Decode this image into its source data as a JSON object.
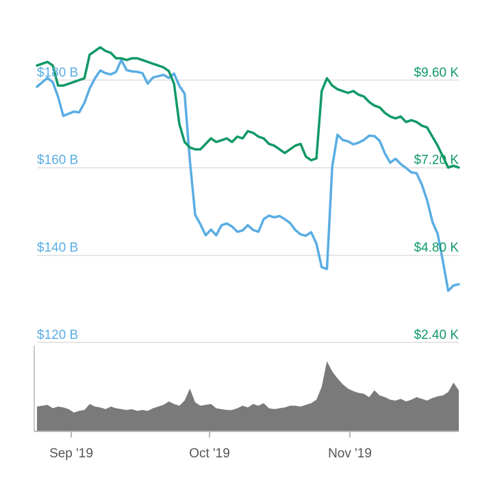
{
  "colors": {
    "market_cap": "#5aade3",
    "price": "#119966",
    "volume": "#7a7a7a",
    "grid": "#dddddd",
    "axis": "#b9b9b9",
    "x_tick_text": "#555555"
  },
  "chart_data": [
    {
      "type": "line",
      "title": "",
      "xlabel": "",
      "ylabel": "",
      "grid": true,
      "legend": "none",
      "x_ticks": [
        "Sep '19",
        "Oct '19",
        "Nov '19"
      ],
      "x": [
        "2019-08-23",
        "2019-11-25"
      ],
      "left_axis": {
        "ticks": [
          {
            "value": 120,
            "label": "$120 B"
          },
          {
            "value": 140,
            "label": "$140 B"
          },
          {
            "value": 160,
            "label": "$160 B"
          },
          {
            "value": 180,
            "label": "$180 B"
          }
        ],
        "ylim": [
          120,
          180
        ]
      },
      "right_axis": {
        "ticks": [
          {
            "value": 2.4,
            "label": "$2.40 K"
          },
          {
            "value": 4.8,
            "label": "$4.80 K"
          },
          {
            "value": 7.2,
            "label": "$7.20 K"
          },
          {
            "value": 9.6,
            "label": "$9.60 K"
          }
        ],
        "ylim": [
          2.4,
          9.6
        ]
      },
      "series": [
        {
          "axis": "left",
          "values": [
            [
              0,
              178.5
            ],
            [
              2,
              180.5
            ],
            [
              3,
              179.5
            ],
            [
              4,
              176.2
            ],
            [
              5,
              171.8
            ],
            [
              7,
              172.8
            ],
            [
              8,
              172.6
            ],
            [
              9,
              174.8
            ],
            [
              10,
              178.1
            ],
            [
              11,
              180.4
            ],
            [
              12,
              182.2
            ],
            [
              13,
              181.6
            ],
            [
              14,
              181.3
            ],
            [
              15,
              181.9
            ],
            [
              16,
              184.6
            ],
            [
              17,
              182.3
            ],
            [
              18,
              182.0
            ],
            [
              19,
              181.9
            ],
            [
              20,
              181.6
            ],
            [
              21,
              179.2
            ],
            [
              22,
              180.6
            ],
            [
              23,
              180.9
            ],
            [
              24,
              181.2
            ],
            [
              25,
              180.5
            ],
            [
              26,
              181.5
            ],
            [
              27,
              178.7
            ],
            [
              28,
              176.9
            ],
            [
              29,
              161.6
            ],
            [
              30,
              149.2
            ],
            [
              31,
              147.0
            ],
            [
              32,
              144.5
            ],
            [
              33,
              145.8
            ],
            [
              34,
              144.5
            ],
            [
              35,
              146.8
            ],
            [
              36,
              147.2
            ],
            [
              37,
              146.5
            ],
            [
              38,
              145.3
            ],
            [
              39,
              145.6
            ],
            [
              40,
              146.8
            ],
            [
              41,
              145.7
            ],
            [
              42,
              145.3
            ],
            [
              43,
              148.2
            ],
            [
              44,
              149.0
            ],
            [
              45,
              148.6
            ],
            [
              46,
              148.9
            ],
            [
              47,
              148.2
            ],
            [
              48,
              147.3
            ],
            [
              49,
              145.7
            ],
            [
              50,
              144.7
            ],
            [
              51,
              144.4
            ],
            [
              52,
              145.2
            ],
            [
              53,
              142.6
            ],
            [
              54,
              137.2
            ],
            [
              55,
              136.8
            ],
            [
              56,
              160.2
            ],
            [
              57,
              167.5
            ],
            [
              58,
              166.3
            ],
            [
              59,
              166.0
            ],
            [
              60,
              165.3
            ],
            [
              61,
              165.7
            ],
            [
              62,
              166.3
            ],
            [
              63,
              167.3
            ],
            [
              64,
              167.2
            ],
            [
              65,
              166.1
            ],
            [
              66,
              163.2
            ],
            [
              67,
              161.1
            ],
            [
              68,
              162.0
            ],
            [
              69,
              160.8
            ],
            [
              70,
              159.9
            ],
            [
              71,
              158.9
            ],
            [
              72,
              158.7
            ],
            [
              73,
              156.1
            ],
            [
              74,
              152.5
            ],
            [
              75,
              147.6
            ],
            [
              76,
              144.8
            ],
            [
              77,
              138.5
            ],
            [
              78,
              131.8
            ],
            [
              79,
              133.0
            ],
            [
              80,
              133.3
            ]
          ]
        },
        {
          "axis": "right",
          "values": [
            [
              0,
              10.0
            ],
            [
              2,
              10.1
            ],
            [
              3,
              10.0
            ],
            [
              4,
              9.45
            ],
            [
              5,
              9.45
            ],
            [
              7,
              9.55
            ],
            [
              8,
              9.6
            ],
            [
              9,
              9.65
            ],
            [
              10,
              10.3
            ],
            [
              11,
              10.4
            ],
            [
              12,
              10.5
            ],
            [
              13,
              10.4
            ],
            [
              14,
              10.35
            ],
            [
              15,
              10.2
            ],
            [
              16,
              10.2
            ],
            [
              17,
              10.15
            ],
            [
              18,
              10.2
            ],
            [
              19,
              10.2
            ],
            [
              20,
              10.15
            ],
            [
              21,
              10.1
            ],
            [
              22,
              10.05
            ],
            [
              23,
              10.0
            ],
            [
              24,
              9.95
            ],
            [
              25,
              9.85
            ],
            [
              26,
              9.5
            ],
            [
              27,
              8.4
            ],
            [
              28,
              7.9
            ],
            [
              29,
              7.75
            ],
            [
              30,
              7.7
            ],
            [
              31,
              7.7
            ],
            [
              32,
              7.85
            ],
            [
              33,
              8.0
            ],
            [
              34,
              7.9
            ],
            [
              35,
              7.95
            ],
            [
              36,
              8.0
            ],
            [
              37,
              7.9
            ],
            [
              38,
              8.05
            ],
            [
              39,
              8.0
            ],
            [
              40,
              8.2
            ],
            [
              41,
              8.15
            ],
            [
              42,
              8.05
            ],
            [
              43,
              8.0
            ],
            [
              44,
              7.85
            ],
            [
              45,
              7.8
            ],
            [
              46,
              7.7
            ],
            [
              47,
              7.6
            ],
            [
              48,
              7.7
            ],
            [
              49,
              7.8
            ],
            [
              50,
              7.85
            ],
            [
              51,
              7.5
            ],
            [
              52,
              7.4
            ],
            [
              53,
              7.45
            ],
            [
              54,
              9.3
            ],
            [
              55,
              9.65
            ],
            [
              56,
              9.45
            ],
            [
              57,
              9.35
            ],
            [
              58,
              9.3
            ],
            [
              59,
              9.25
            ],
            [
              60,
              9.3
            ],
            [
              61,
              9.2
            ],
            [
              62,
              9.15
            ],
            [
              63,
              9.0
            ],
            [
              64,
              8.9
            ],
            [
              65,
              8.85
            ],
            [
              66,
              8.7
            ],
            [
              67,
              8.6
            ],
            [
              68,
              8.55
            ],
            [
              69,
              8.6
            ],
            [
              70,
              8.45
            ],
            [
              71,
              8.5
            ],
            [
              72,
              8.45
            ],
            [
              73,
              8.35
            ],
            [
              74,
              8.3
            ],
            [
              75,
              8.05
            ],
            [
              76,
              7.8
            ],
            [
              77,
              7.5
            ],
            [
              78,
              7.2
            ],
            [
              79,
              7.25
            ],
            [
              80,
              7.2
            ]
          ]
        }
      ]
    },
    {
      "type": "area",
      "title": "",
      "xlabel": "",
      "ylabel": "",
      "grid": false,
      "legend": "none",
      "ylim": [
        0,
        1
      ],
      "series": [
        {
          "values": [
            [
              0,
              0.29
            ],
            [
              2,
              0.31
            ],
            [
              3,
              0.27
            ],
            [
              4,
              0.29
            ],
            [
              5,
              0.28
            ],
            [
              6,
              0.26
            ],
            [
              7,
              0.22
            ],
            [
              8,
              0.24
            ],
            [
              9,
              0.25
            ],
            [
              10,
              0.32
            ],
            [
              11,
              0.29
            ],
            [
              12,
              0.28
            ],
            [
              13,
              0.26
            ],
            [
              14,
              0.29
            ],
            [
              15,
              0.27
            ],
            [
              16,
              0.26
            ],
            [
              17,
              0.25
            ],
            [
              18,
              0.26
            ],
            [
              19,
              0.24
            ],
            [
              20,
              0.25
            ],
            [
              21,
              0.24
            ],
            [
              22,
              0.27
            ],
            [
              23,
              0.29
            ],
            [
              24,
              0.31
            ],
            [
              25,
              0.35
            ],
            [
              26,
              0.32
            ],
            [
              27,
              0.3
            ],
            [
              28,
              0.36
            ],
            [
              29,
              0.5
            ],
            [
              30,
              0.34
            ],
            [
              31,
              0.3
            ],
            [
              32,
              0.31
            ],
            [
              33,
              0.32
            ],
            [
              34,
              0.27
            ],
            [
              35,
              0.26
            ],
            [
              36,
              0.25
            ],
            [
              37,
              0.25
            ],
            [
              38,
              0.27
            ],
            [
              39,
              0.3
            ],
            [
              40,
              0.28
            ],
            [
              41,
              0.32
            ],
            [
              42,
              0.3
            ],
            [
              43,
              0.33
            ],
            [
              44,
              0.27
            ],
            [
              45,
              0.26
            ],
            [
              46,
              0.27
            ],
            [
              47,
              0.28
            ],
            [
              48,
              0.3
            ],
            [
              49,
              0.3
            ],
            [
              50,
              0.29
            ],
            [
              51,
              0.31
            ],
            [
              52,
              0.33
            ],
            [
              53,
              0.37
            ],
            [
              54,
              0.52
            ],
            [
              55,
              0.82
            ],
            [
              56,
              0.7
            ],
            [
              57,
              0.62
            ],
            [
              58,
              0.55
            ],
            [
              59,
              0.5
            ],
            [
              60,
              0.47
            ],
            [
              61,
              0.45
            ],
            [
              62,
              0.44
            ],
            [
              63,
              0.4
            ],
            [
              64,
              0.48
            ],
            [
              65,
              0.42
            ],
            [
              66,
              0.4
            ],
            [
              67,
              0.37
            ],
            [
              68,
              0.36
            ],
            [
              69,
              0.38
            ],
            [
              70,
              0.35
            ],
            [
              71,
              0.37
            ],
            [
              72,
              0.4
            ],
            [
              73,
              0.38
            ],
            [
              74,
              0.36
            ],
            [
              75,
              0.39
            ],
            [
              76,
              0.41
            ],
            [
              77,
              0.42
            ],
            [
              78,
              0.46
            ],
            [
              79,
              0.57
            ],
            [
              80,
              0.48
            ]
          ]
        }
      ]
    }
  ]
}
